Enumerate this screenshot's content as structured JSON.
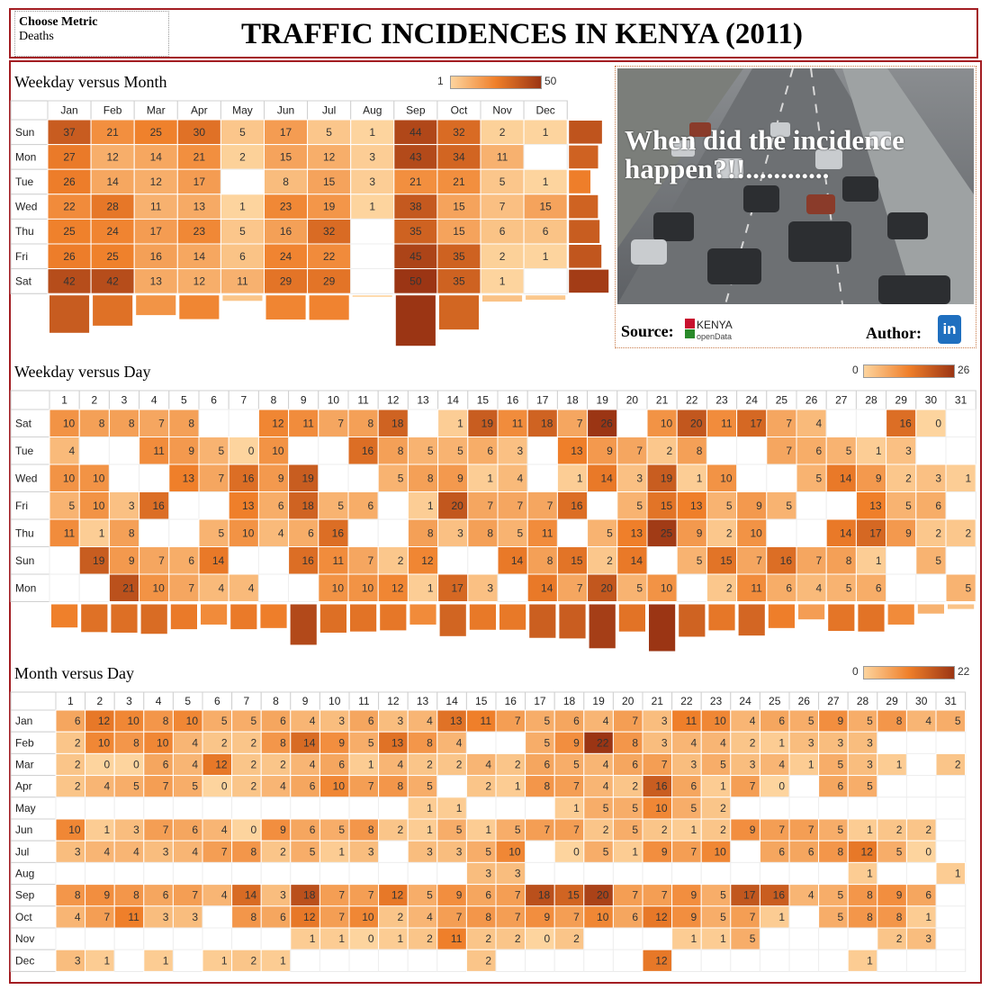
{
  "header": {
    "title": "TRAFFIC INCIDENCES IN KENYA (2011)"
  },
  "metric": {
    "label": "Choose Metric",
    "value": "Deaths"
  },
  "panel": {
    "caption": "When did the incidence happen?!!............",
    "source_label": "Source:",
    "logo_text_main": "KENYA",
    "logo_text_sub": "openData",
    "author_label": "Author:",
    "linkedin_glyph": "in"
  },
  "colors": {
    "low": "#fdd49e",
    "mid": "#ef7f2a",
    "high": "#9b3514",
    "frame": "#a31d22"
  },
  "icons": [
    "road-photo",
    "kenya-logo",
    "linkedin-icon"
  ],
  "chart_data": [
    {
      "type": "heatmap",
      "title": "Weekday versus Month",
      "legend": {
        "min": 1,
        "max": 50
      },
      "columns": [
        "Jan",
        "Feb",
        "Mar",
        "Apr",
        "May",
        "Jun",
        "Jul",
        "Aug",
        "Sep",
        "Oct",
        "Nov",
        "Dec"
      ],
      "rows": [
        "Sun",
        "Mon",
        "Tue",
        "Wed",
        "Thu",
        "Fri",
        "Sat"
      ],
      "values": [
        [
          37,
          21,
          25,
          30,
          5,
          17,
          5,
          1,
          44,
          32,
          2,
          1
        ],
        [
          27,
          12,
          14,
          21,
          2,
          15,
          12,
          3,
          43,
          34,
          11,
          null
        ],
        [
          26,
          14,
          12,
          17,
          null,
          8,
          15,
          3,
          21,
          21,
          5,
          1
        ],
        [
          22,
          28,
          11,
          13,
          1,
          23,
          19,
          1,
          38,
          15,
          7,
          15
        ],
        [
          25,
          24,
          17,
          23,
          5,
          16,
          32,
          null,
          35,
          15,
          6,
          6
        ],
        [
          26,
          25,
          16,
          14,
          6,
          24,
          22,
          null,
          45,
          35,
          2,
          1
        ],
        [
          42,
          42,
          13,
          12,
          11,
          29,
          29,
          null,
          50,
          35,
          1,
          null
        ]
      ]
    },
    {
      "type": "heatmap",
      "title": "Weekday versus Day",
      "legend": {
        "min": 0,
        "max": 26
      },
      "columns": [
        "1",
        "2",
        "3",
        "4",
        "5",
        "6",
        "7",
        "8",
        "9",
        "10",
        "11",
        "12",
        "13",
        "14",
        "15",
        "16",
        "17",
        "18",
        "19",
        "20",
        "21",
        "22",
        "23",
        "24",
        "25",
        "26",
        "27",
        "28",
        "29",
        "30",
        "31"
      ],
      "rows": [
        "Sat",
        "Tue",
        "Wed",
        "Fri",
        "Thu",
        "Sun",
        "Mon"
      ],
      "values": [
        [
          10,
          8,
          8,
          7,
          8,
          null,
          null,
          12,
          11,
          7,
          8,
          18,
          null,
          1,
          19,
          11,
          18,
          7,
          26,
          null,
          10,
          20,
          11,
          17,
          7,
          4,
          null,
          null,
          16,
          0,
          null
        ],
        [
          4,
          null,
          null,
          11,
          9,
          5,
          0,
          10,
          null,
          null,
          16,
          8,
          5,
          5,
          6,
          3,
          null,
          13,
          9,
          7,
          2,
          8,
          null,
          null,
          7,
          6,
          5,
          1,
          3,
          null,
          null
        ],
        [
          10,
          10,
          null,
          null,
          13,
          7,
          16,
          9,
          19,
          null,
          null,
          5,
          8,
          9,
          1,
          4,
          null,
          1,
          14,
          3,
          19,
          1,
          10,
          null,
          null,
          5,
          14,
          9,
          2,
          3,
          1
        ],
        [
          5,
          10,
          3,
          16,
          null,
          null,
          13,
          6,
          18,
          5,
          6,
          null,
          1,
          20,
          7,
          7,
          7,
          16,
          null,
          5,
          15,
          13,
          5,
          9,
          5,
          null,
          null,
          13,
          5,
          6,
          null
        ],
        [
          11,
          1,
          8,
          null,
          null,
          5,
          10,
          4,
          6,
          16,
          null,
          null,
          8,
          3,
          8,
          5,
          11,
          null,
          5,
          13,
          25,
          9,
          2,
          10,
          null,
          null,
          14,
          17,
          9,
          2,
          2
        ],
        [
          null,
          19,
          9,
          7,
          6,
          14,
          null,
          null,
          16,
          11,
          7,
          2,
          12,
          null,
          null,
          14,
          8,
          15,
          2,
          14,
          null,
          5,
          15,
          7,
          16,
          7,
          8,
          1,
          null,
          5,
          null
        ],
        [
          null,
          null,
          21,
          10,
          7,
          4,
          4,
          null,
          null,
          10,
          10,
          12,
          1,
          17,
          3,
          null,
          14,
          7,
          20,
          5,
          10,
          null,
          2,
          11,
          6,
          4,
          5,
          6,
          null,
          null,
          5
        ]
      ]
    },
    {
      "type": "heatmap",
      "title": "Month versus Day",
      "legend": {
        "min": 0,
        "max": 22
      },
      "columns": [
        "1",
        "2",
        "3",
        "4",
        "5",
        "6",
        "7",
        "8",
        "9",
        "10",
        "11",
        "12",
        "13",
        "14",
        "15",
        "16",
        "17",
        "18",
        "19",
        "20",
        "21",
        "22",
        "23",
        "24",
        "25",
        "26",
        "27",
        "28",
        "29",
        "30",
        "31"
      ],
      "rows": [
        "Jan",
        "Feb",
        "Mar",
        "Apr",
        "May",
        "Jun",
        "Jul",
        "Aug",
        "Sep",
        "Oct",
        "Nov",
        "Dec"
      ],
      "values": [
        [
          6,
          12,
          10,
          8,
          10,
          5,
          5,
          6,
          4,
          3,
          6,
          3,
          4,
          13,
          11,
          7,
          5,
          6,
          4,
          7,
          3,
          11,
          10,
          4,
          6,
          5,
          9,
          5,
          8,
          4,
          5
        ],
        [
          2,
          10,
          8,
          10,
          4,
          2,
          2,
          8,
          14,
          9,
          5,
          13,
          8,
          4,
          null,
          null,
          5,
          9,
          22,
          8,
          3,
          4,
          4,
          2,
          1,
          3,
          3,
          3,
          null,
          null,
          null
        ],
        [
          2,
          0,
          0,
          6,
          4,
          12,
          2,
          2,
          4,
          6,
          1,
          4,
          2,
          2,
          4,
          2,
          6,
          5,
          4,
          6,
          7,
          3,
          5,
          3,
          4,
          1,
          5,
          3,
          1,
          null,
          2
        ],
        [
          2,
          4,
          5,
          7,
          5,
          0,
          2,
          4,
          6,
          10,
          7,
          8,
          5,
          null,
          2,
          1,
          8,
          7,
          4,
          2,
          16,
          6,
          1,
          7,
          0,
          null,
          6,
          5,
          null,
          null,
          null
        ],
        [
          null,
          null,
          null,
          null,
          null,
          null,
          null,
          null,
          null,
          null,
          null,
          null,
          1,
          1,
          null,
          null,
          null,
          1,
          5,
          5,
          10,
          5,
          2,
          null,
          null,
          null,
          null,
          null,
          null,
          null,
          null
        ],
        [
          10,
          1,
          3,
          7,
          6,
          4,
          0,
          9,
          6,
          5,
          8,
          2,
          1,
          5,
          1,
          5,
          7,
          7,
          2,
          5,
          2,
          1,
          2,
          9,
          7,
          7,
          5,
          1,
          2,
          2,
          null
        ],
        [
          3,
          4,
          4,
          3,
          4,
          7,
          8,
          2,
          5,
          1,
          3,
          null,
          3,
          3,
          5,
          10,
          null,
          0,
          5,
          1,
          9,
          7,
          10,
          null,
          6,
          6,
          8,
          12,
          5,
          0,
          null
        ],
        [
          null,
          null,
          null,
          null,
          null,
          null,
          null,
          null,
          null,
          null,
          null,
          null,
          null,
          null,
          3,
          3,
          null,
          null,
          null,
          null,
          null,
          null,
          null,
          null,
          null,
          null,
          null,
          1,
          null,
          null,
          1
        ],
        [
          8,
          9,
          8,
          6,
          7,
          4,
          14,
          3,
          18,
          7,
          7,
          12,
          5,
          9,
          6,
          7,
          18,
          15,
          20,
          7,
          7,
          9,
          5,
          17,
          16,
          4,
          5,
          8,
          9,
          6,
          null
        ],
        [
          4,
          7,
          11,
          3,
          3,
          null,
          8,
          6,
          12,
          7,
          10,
          2,
          4,
          7,
          8,
          7,
          9,
          7,
          10,
          6,
          12,
          9,
          5,
          7,
          1,
          null,
          5,
          8,
          8,
          1,
          null
        ],
        [
          null,
          null,
          null,
          null,
          null,
          null,
          null,
          null,
          1,
          1,
          0,
          1,
          2,
          11,
          2,
          2,
          0,
          2,
          null,
          null,
          null,
          1,
          1,
          5,
          null,
          null,
          null,
          null,
          2,
          3,
          null
        ],
        [
          3,
          1,
          null,
          1,
          null,
          1,
          2,
          1,
          null,
          null,
          null,
          null,
          null,
          null,
          2,
          null,
          null,
          null,
          null,
          null,
          12,
          null,
          null,
          null,
          null,
          null,
          null,
          1,
          null,
          null,
          null
        ]
      ]
    }
  ]
}
